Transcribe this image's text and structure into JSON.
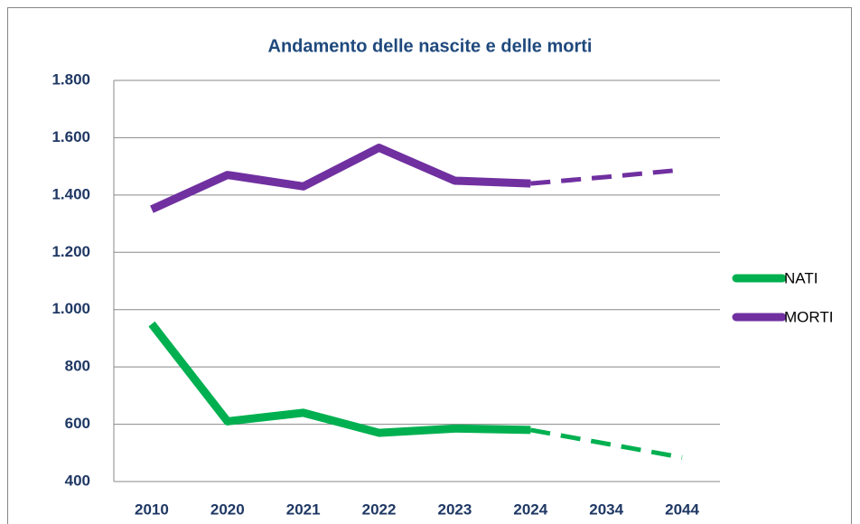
{
  "chart_data": {
    "type": "line",
    "title": "Andamento delle nascite e delle morti",
    "categories": [
      "2010",
      "2020",
      "2021",
      "2022",
      "2023",
      "2024",
      "2034",
      "2044"
    ],
    "series": [
      {
        "name": "NATI",
        "color": "#00b050",
        "values": [
          950,
          610,
          640,
          570,
          585,
          580,
          532,
          484
        ]
      },
      {
        "name": "MORTI",
        "color": "#7030a0",
        "values": [
          1350,
          1470,
          1430,
          1565,
          1450,
          1440,
          1463,
          1488
        ]
      }
    ],
    "dashed_from": 5,
    "ylim": [
      400,
      1800
    ],
    "yticks": [
      400,
      600,
      800,
      {
        "value": 1000,
        "label": "1.000"
      },
      {
        "value": 1200,
        "label": "1.200"
      },
      {
        "value": 1400,
        "label": "1.400"
      },
      {
        "value": 1600,
        "label": "1.600"
      },
      {
        "value": 1800,
        "label": "1.800"
      }
    ],
    "grid": true,
    "legend": "right"
  }
}
